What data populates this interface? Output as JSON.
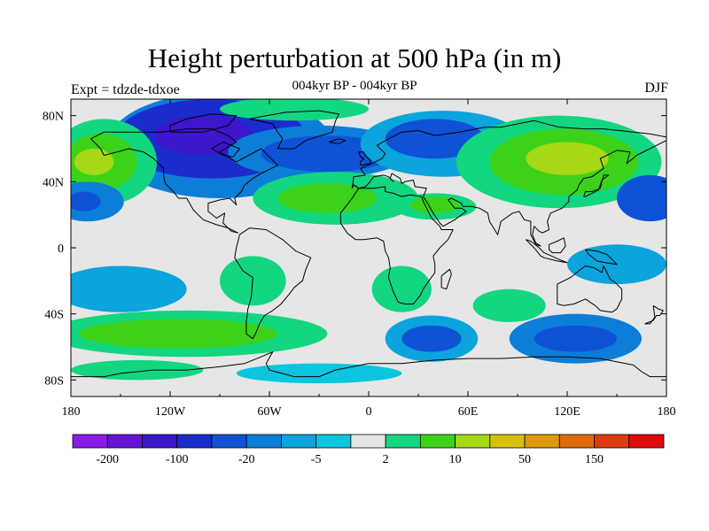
{
  "figure": {
    "title": "Height perturbation at 500 hPa (in m)",
    "subtitle": "004kyr BP - 004kyr BP",
    "left_label": "Expt = tdzde-tdxoe",
    "right_label": "DJF"
  },
  "map": {
    "projection": "cylindrical-equidistant",
    "lon_range": [
      -180,
      180
    ],
    "lat_range": [
      -90,
      90
    ],
    "x_ticks": [
      {
        "lon": -180,
        "label": "180"
      },
      {
        "lon": -120,
        "label": "120W"
      },
      {
        "lon": -60,
        "label": "60W"
      },
      {
        "lon": 0,
        "label": "0"
      },
      {
        "lon": 60,
        "label": "60E"
      },
      {
        "lon": 120,
        "label": "120E"
      },
      {
        "lon": 180,
        "label": "180"
      }
    ],
    "y_ticks": [
      {
        "lat": 80,
        "label": "80N"
      },
      {
        "lat": 40,
        "label": "40N"
      },
      {
        "lat": 0,
        "label": "0"
      },
      {
        "lat": -40,
        "label": "40S"
      },
      {
        "lat": -80,
        "label": "80S"
      }
    ],
    "background_color": "#e6e6e6",
    "features": [
      {
        "name": "pacific-ne-low-ring",
        "lon": -90,
        "lat": 62,
        "rlon": 68,
        "rlat": 32,
        "level": 5
      },
      {
        "name": "pacific-ne-low",
        "lon": -95,
        "lat": 66,
        "rlon": 58,
        "rlat": 24,
        "level": 3
      },
      {
        "name": "pacific-ne-low-core",
        "lon": -100,
        "lat": 68,
        "rlon": 30,
        "rlat": 12,
        "level": 2
      },
      {
        "name": "north-atlantic-low-ring",
        "lon": -30,
        "lat": 58,
        "rlon": 55,
        "rlat": 16,
        "level": 5
      },
      {
        "name": "north-atlantic-low",
        "lon": -25,
        "lat": 57,
        "rlon": 40,
        "rlat": 11,
        "level": 4
      },
      {
        "name": "siberia-low-ring",
        "lon": 45,
        "lat": 63,
        "rlon": 50,
        "rlat": 20,
        "level": 6
      },
      {
        "name": "siberia-low",
        "lon": 40,
        "lat": 66,
        "rlon": 30,
        "rlat": 12,
        "level": 4
      },
      {
        "name": "greenland-high",
        "lon": -40,
        "lat": 85,
        "rlon": 35,
        "rlat": 5,
        "level": 10
      },
      {
        "name": "arctic-high-green",
        "lon": -45,
        "lat": 84,
        "rlon": 45,
        "rlat": 7,
        "level": 9
      },
      {
        "name": "ne-pacific-high-outer",
        "lon": -160,
        "lat": 52,
        "rlon": 32,
        "rlat": 26,
        "level": 9
      },
      {
        "name": "ne-pacific-high",
        "lon": -162,
        "lat": 52,
        "rlon": 22,
        "rlat": 17,
        "level": 10
      },
      {
        "name": "ne-pacific-high-core",
        "lon": -166,
        "lat": 52,
        "rlon": 12,
        "rlat": 8,
        "level": 11
      },
      {
        "name": "pacific-subtrop-low",
        "lon": -170,
        "lat": 28,
        "rlon": 22,
        "rlat": 12,
        "level": 5
      },
      {
        "name": "pacific-subtrop-low-core",
        "lon": -172,
        "lat": 28,
        "rlon": 10,
        "rlat": 6,
        "level": 4
      },
      {
        "name": "atlantic-subtrop-high-outer",
        "lon": -20,
        "lat": 30,
        "rlon": 50,
        "rlat": 16,
        "level": 9
      },
      {
        "name": "atlantic-subtrop-high",
        "lon": -25,
        "lat": 30,
        "rlon": 30,
        "rlat": 9,
        "level": 10
      },
      {
        "name": "asia-high-outer",
        "lon": 115,
        "lat": 52,
        "rlon": 62,
        "rlat": 28,
        "level": 9
      },
      {
        "name": "asia-high",
        "lon": 118,
        "lat": 52,
        "rlon": 45,
        "rlat": 20,
        "level": 10
      },
      {
        "name": "asia-high-core",
        "lon": 120,
        "lat": 54,
        "rlon": 25,
        "rlat": 10,
        "level": 11
      },
      {
        "name": "nw-pacific-low",
        "lon": 170,
        "lat": 30,
        "rlon": 20,
        "rlat": 14,
        "level": 4
      },
      {
        "name": "north-africa-green",
        "lon": 40,
        "lat": 25,
        "rlon": 25,
        "rlat": 8,
        "level": 9
      },
      {
        "name": "north-africa-yellow",
        "lon": 40,
        "lat": 26,
        "rlon": 15,
        "rlat": 5,
        "level": 10
      },
      {
        "name": "west-pacific-cyan",
        "lon": 150,
        "lat": -10,
        "rlon": 30,
        "rlat": 12,
        "level": 6
      },
      {
        "name": "south-pacific-cyan",
        "lon": -150,
        "lat": -25,
        "rlon": 40,
        "rlat": 14,
        "level": 6
      },
      {
        "name": "south-america-green",
        "lon": -70,
        "lat": -20,
        "rlon": 20,
        "rlat": 15,
        "level": 9
      },
      {
        "name": "south-atlantic-green",
        "lon": 20,
        "lat": -25,
        "rlon": 18,
        "rlat": 14,
        "level": 9
      },
      {
        "name": "south-pacific-band-outer",
        "lon": -110,
        "lat": -52,
        "rlon": 85,
        "rlat": 14,
        "level": 9
      },
      {
        "name": "south-pacific-band",
        "lon": -115,
        "lat": -52,
        "rlon": 60,
        "rlat": 9,
        "level": 10
      },
      {
        "name": "south-indian-low-ring",
        "lon": 38,
        "lat": -55,
        "rlon": 28,
        "rlat": 14,
        "level": 6
      },
      {
        "name": "south-indian-low",
        "lon": 38,
        "lat": -55,
        "rlon": 18,
        "rlat": 8,
        "level": 4
      },
      {
        "name": "indian-ocean-green",
        "lon": 85,
        "lat": -35,
        "rlon": 22,
        "rlat": 10,
        "level": 9
      },
      {
        "name": "australia-low-ring",
        "lon": 125,
        "lat": -55,
        "rlon": 40,
        "rlat": 15,
        "level": 5
      },
      {
        "name": "australia-low",
        "lon": 125,
        "lat": -55,
        "rlon": 25,
        "rlat": 8,
        "level": 4
      },
      {
        "name": "antarctic-green",
        "lon": -140,
        "lat": -74,
        "rlon": 40,
        "rlat": 6,
        "level": 9
      },
      {
        "name": "antarctic-cyan",
        "lon": -30,
        "lat": -76,
        "rlon": 50,
        "rlat": 6,
        "level": 7
      }
    ]
  },
  "colorbar": {
    "colors": [
      "#8a1be8",
      "#6413d6",
      "#3c17cc",
      "#1a2ccc",
      "#0f52d6",
      "#0c7ed8",
      "#0ba4dc",
      "#0bc4de",
      "#e6e6e6",
      "#13d680",
      "#3cd21a",
      "#a6d814",
      "#d8c00a",
      "#dc9a0a",
      "#de6c0e",
      "#de3a10",
      "#e00a0a"
    ],
    "labels": [
      {
        "after_box": 1,
        "text": "-200"
      },
      {
        "after_box": 3,
        "text": "-100"
      },
      {
        "after_box": 5,
        "text": "-20"
      },
      {
        "after_box": 7,
        "text": "-5"
      },
      {
        "after_box": 9,
        "text": "2"
      },
      {
        "after_box": 11,
        "text": "10"
      },
      {
        "after_box": 13,
        "text": "50"
      },
      {
        "after_box": 15,
        "text": "150"
      }
    ]
  }
}
